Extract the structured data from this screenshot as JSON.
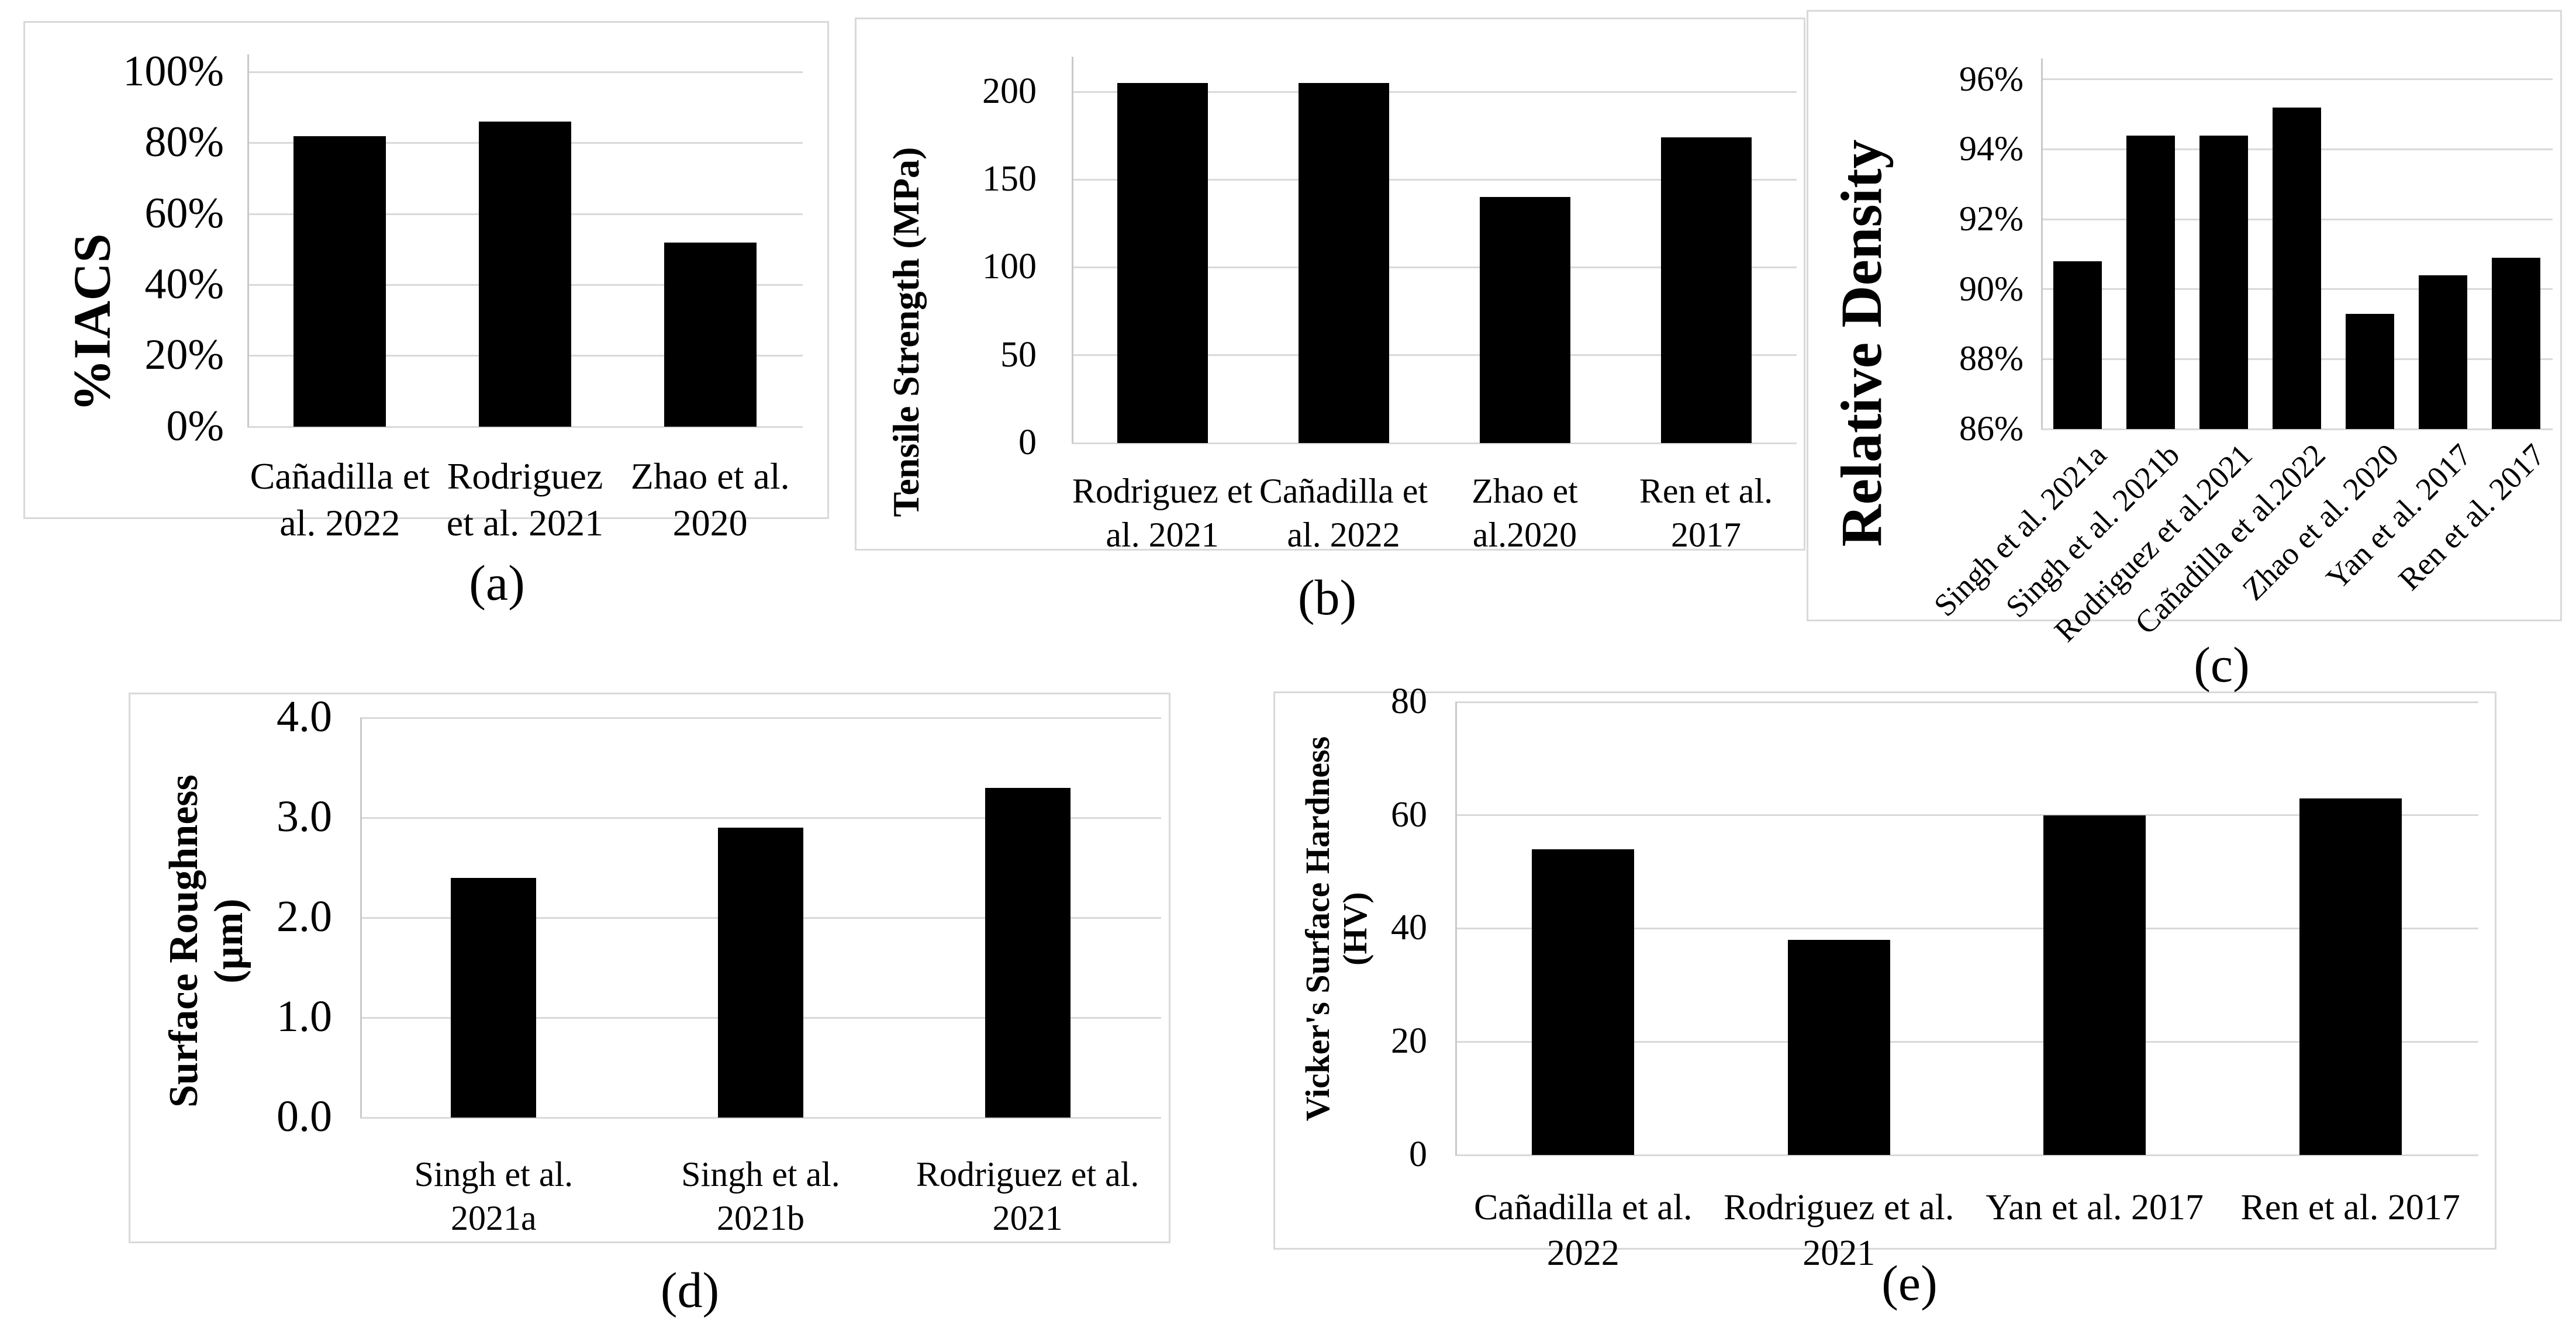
{
  "figure": {
    "background": "#ffffff",
    "bar_color": "#000000",
    "grid_color": "#d9d9d9",
    "panel_border_color": "#d9d9d9",
    "text_color": "#000000"
  },
  "chart_data": [
    {
      "id": "a",
      "type": "bar",
      "caption": "(a)",
      "title": "",
      "xlabel": "",
      "ylabel": "%IACS",
      "categories": [
        "Cañadilla et\nal. 2022",
        "Rodriguez\net al. 2021",
        "Zhao et al.\n2020"
      ],
      "values": [
        82,
        86,
        52
      ],
      "ylim": [
        0,
        105
      ],
      "ytick_values": [
        0,
        20,
        40,
        60,
        80,
        100
      ],
      "yticks": [
        "0%",
        "20%",
        "40%",
        "60%",
        "80%",
        "100%"
      ],
      "grid": true,
      "legend": "none"
    },
    {
      "id": "b",
      "type": "bar",
      "caption": "(b)",
      "title": "",
      "xlabel": "",
      "ylabel": "Tensile Strength (MPa)",
      "categories": [
        "Rodriguez et\nal. 2021",
        "Cañadilla et\nal. 2022",
        "Zhao et\nal.2020",
        "Ren et al.\n2017"
      ],
      "values": [
        205,
        205,
        140,
        174
      ],
      "ylim": [
        0,
        220
      ],
      "ytick_values": [
        0,
        50,
        100,
        150,
        200
      ],
      "yticks": [
        "0",
        "50",
        "100",
        "150",
        "200"
      ],
      "grid": true,
      "legend": "none"
    },
    {
      "id": "c",
      "type": "bar",
      "caption": "(c)",
      "title": "",
      "xlabel": "",
      "ylabel": "Relative Density",
      "categories": [
        "Singh et al. 2021a",
        "Singh et al. 2021b",
        "Rodriguez et al.2021",
        "Cañadilla et al.2022",
        "Zhao et al. 2020",
        "Yan et al. 2017",
        "Ren et al. 2017"
      ],
      "values": [
        90.8,
        94.4,
        94.4,
        95.2,
        89.3,
        90.4,
        90.9
      ],
      "ylim": [
        86,
        96.6
      ],
      "ytick_values": [
        86,
        88,
        90,
        92,
        94,
        96
      ],
      "yticks": [
        "86%",
        "88%",
        "90%",
        "92%",
        "94%",
        "96%"
      ],
      "grid": true,
      "legend": "none",
      "rotated_labels": true
    },
    {
      "id": "d",
      "type": "bar",
      "caption": "(d)",
      "title": "",
      "xlabel": "",
      "ylabel": "Surface Roughness\n(µm)",
      "categories": [
        "Singh et al.\n2021a",
        "Singh et al.\n2021b",
        "Rodriguez et al.\n2021"
      ],
      "values": [
        2.4,
        2.9,
        3.3
      ],
      "ylim": [
        0,
        4.0
      ],
      "ytick_values": [
        0,
        1,
        2,
        3,
        4
      ],
      "yticks": [
        "0.0",
        "1.0",
        "2.0",
        "3.0",
        "4.0"
      ],
      "grid": true,
      "legend": "none"
    },
    {
      "id": "e",
      "type": "bar",
      "caption": "(e)",
      "title": "",
      "xlabel": "",
      "ylabel": "Vicker's Surface Hardness\n(HV)",
      "categories": [
        "Cañadilla et al.\n2022",
        "Rodriguez et al.\n2021",
        "Yan et al. 2017",
        "Ren et al. 2017"
      ],
      "values": [
        54,
        38,
        60,
        63
      ],
      "ylim": [
        0,
        80
      ],
      "ytick_values": [
        0,
        20,
        40,
        60,
        80
      ],
      "yticks": [
        "0",
        "20",
        "40",
        "60",
        "80"
      ],
      "grid": true,
      "legend": "none"
    }
  ]
}
